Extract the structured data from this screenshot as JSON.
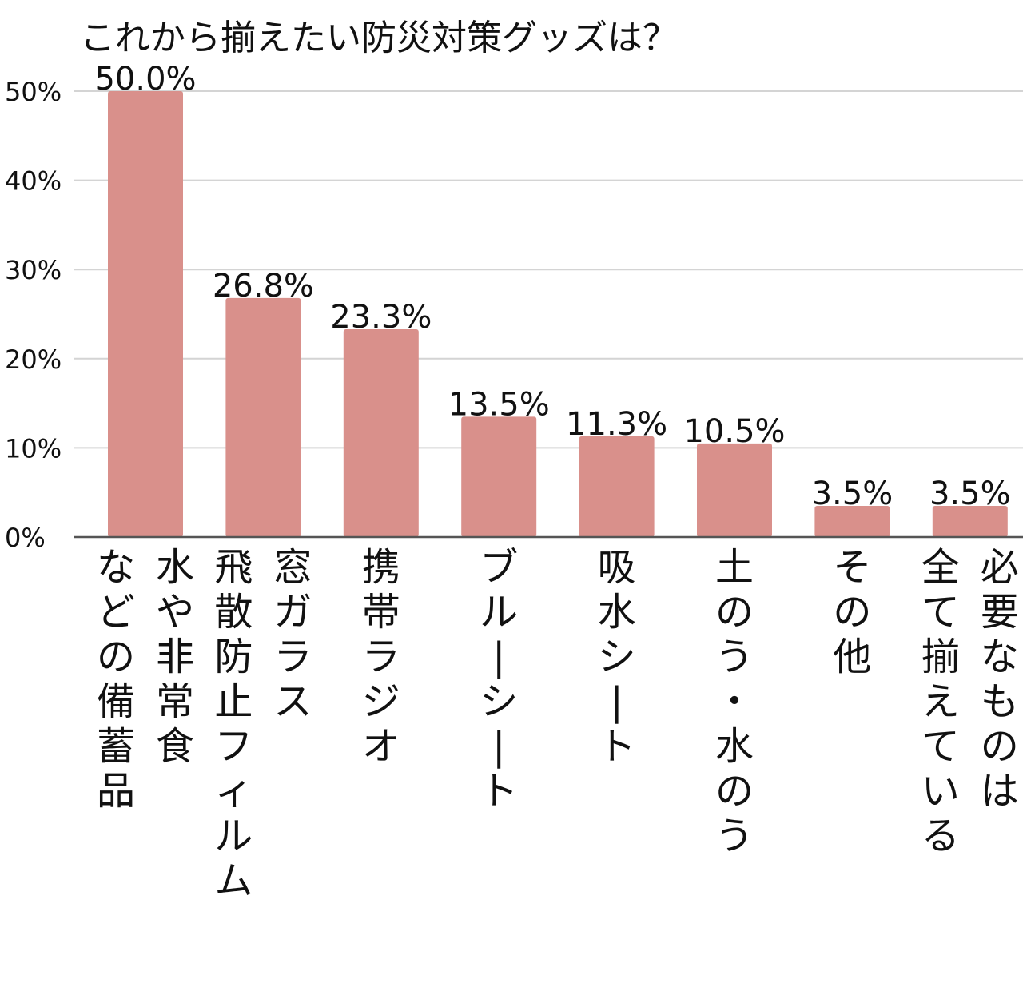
{
  "chart_data": {
    "type": "bar",
    "title": "これから揃えたい防災対策グッズは？",
    "xlabel": "",
    "ylabel": "",
    "ylim": [
      0,
      50
    ],
    "yticks": [
      0,
      10,
      20,
      30,
      40,
      50
    ],
    "ytick_labels": [
      "0%",
      "10%",
      "20%",
      "30%",
      "40%",
      "50%"
    ],
    "grid": true,
    "bar_color": "#d9908b",
    "categories": [
      [
        "水や非常食",
        "などの備蓄品"
      ],
      [
        "窓ガラス",
        "飛散防止フィルム"
      ],
      [
        "携帯ラジオ"
      ],
      [
        "ブルーシート"
      ],
      [
        "吸水シート"
      ],
      [
        "土のう・水のう"
      ],
      [
        "その他"
      ],
      [
        "必要なものは",
        "全て揃えている"
      ]
    ],
    "values": [
      50.0,
      26.8,
      23.3,
      13.5,
      11.3,
      10.5,
      3.5,
      3.5
    ],
    "value_labels": [
      "50.0%",
      "26.8%",
      "23.3%",
      "13.5%",
      "11.3%",
      "10.5%",
      "3.5%",
      "3.5%"
    ]
  }
}
